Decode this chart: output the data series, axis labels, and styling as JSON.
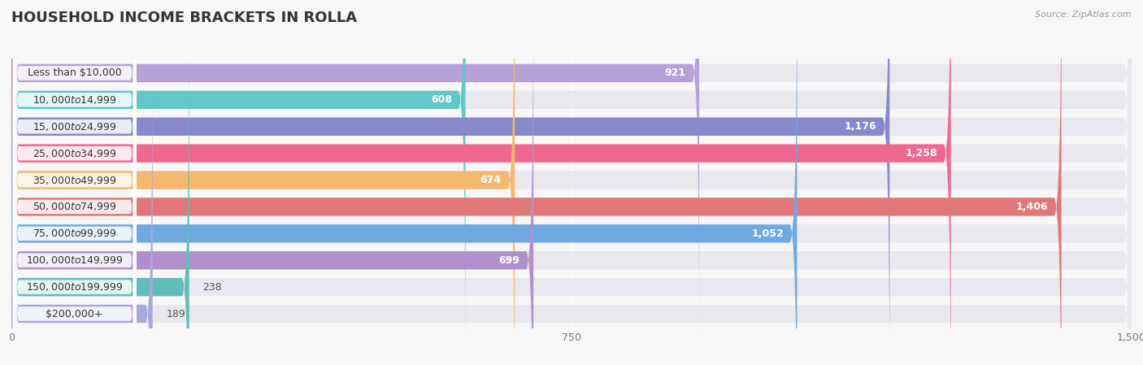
{
  "title": "HOUSEHOLD INCOME BRACKETS IN ROLLA",
  "source": "Source: ZipAtlas.com",
  "categories": [
    "Less than $10,000",
    "$10,000 to $14,999",
    "$15,000 to $24,999",
    "$25,000 to $34,999",
    "$35,000 to $49,999",
    "$50,000 to $74,999",
    "$75,000 to $99,999",
    "$100,000 to $149,999",
    "$150,000 to $199,999",
    "$200,000+"
  ],
  "values": [
    921,
    608,
    1176,
    1258,
    674,
    1406,
    1052,
    699,
    238,
    189
  ],
  "colors": [
    "#b8a0d8",
    "#60c8c8",
    "#8888cc",
    "#f06890",
    "#f5b870",
    "#e07878",
    "#70a8e0",
    "#b090cc",
    "#60bdb8",
    "#a8a8e0"
  ],
  "xlim": [
    0,
    1500
  ],
  "xticks": [
    0,
    750,
    1500
  ],
  "background_color": "#f7f7f7",
  "bar_bg_color": "#e8e8ee",
  "title_fontsize": 13,
  "label_fontsize": 9,
  "value_fontsize": 9,
  "bar_height": 0.68,
  "value_threshold": 300
}
